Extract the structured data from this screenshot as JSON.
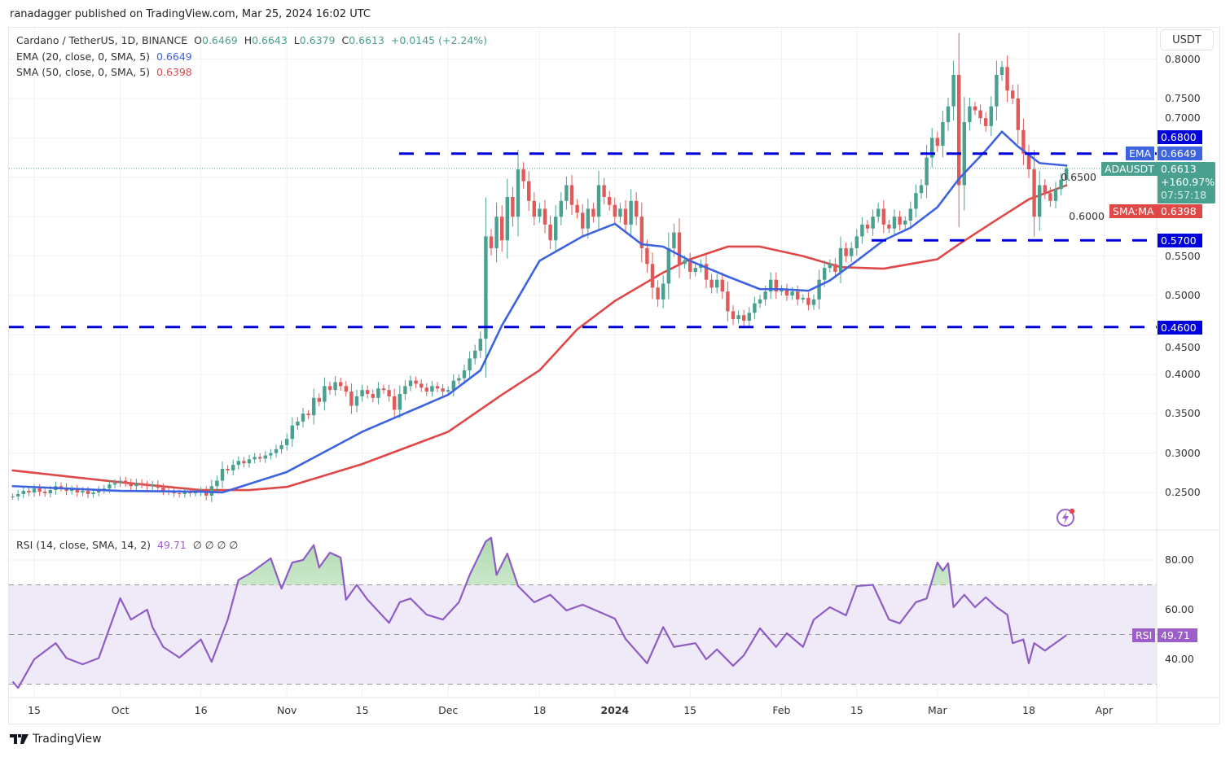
{
  "header": {
    "published": "ranadagger published on TradingView.com, Mar 25, 2024 16:02 UTC"
  },
  "legend": {
    "symbol": "Cardano / TetherUS, 1D, BINANCE",
    "o_label": "O",
    "o": "0.6469",
    "h_label": "H",
    "h": "0.6643",
    "l_label": "L",
    "l": "0.6379",
    "c_label": "C",
    "c": "0.6613",
    "change": "+0.0145 (+2.24%)",
    "ema_label": "EMA (20, close, 0, SMA, 5)",
    "ema_value": "0.6649",
    "sma_label": "SMA (50, close, 0, SMA, 5)",
    "sma_value": "0.6398",
    "rsi_label": "RSI (14, close, SMA, 14, 2)",
    "rsi_value": "49.71",
    "rsi_extra": "∅ ∅ ∅ ∅"
  },
  "axis": {
    "currency": "USDT",
    "price_ticks": [
      "0.2500",
      "0.3000",
      "0.3500",
      "0.4000",
      "0.4500",
      "0.5000",
      "0.5500",
      "0.6000",
      "0.6500",
      "0.7000",
      "0.7500",
      "0.8000"
    ],
    "rsi_ticks": [
      "40.00",
      "60.00",
      "80.00"
    ],
    "time_ticks": [
      {
        "label": "15",
        "date": "2023-09-15"
      },
      {
        "label": "Oct",
        "date": "2023-10-01"
      },
      {
        "label": "16",
        "date": "2023-10-16"
      },
      {
        "label": "Nov",
        "date": "2023-11-01"
      },
      {
        "label": "15",
        "date": "2023-11-15"
      },
      {
        "label": "Dec",
        "date": "2023-12-01"
      },
      {
        "label": "18",
        "date": "2023-12-18"
      },
      {
        "label": "2024",
        "date": "2024-01-01",
        "bold": true
      },
      {
        "label": "15",
        "date": "2024-01-15"
      },
      {
        "label": "Feb",
        "date": "2024-02-01"
      },
      {
        "label": "15",
        "date": "2024-02-15"
      },
      {
        "label": "Mar",
        "date": "2024-03-01"
      },
      {
        "label": "18",
        "date": "2024-03-18"
      },
      {
        "label": "Apr",
        "date": "2024-04-01"
      }
    ]
  },
  "price_labels": {
    "resistance": "0.6800",
    "ema_tag": "EMA",
    "ema": "0.6649",
    "symbol_tag": "ADAUSDT",
    "last": "0.6613",
    "last_change": "+160.97%",
    "countdown": "07:57:18",
    "sma_tag": "SMA:MA",
    "sma": "0.6398",
    "support1": "0.5700",
    "support2": "0.4600",
    "rsi_tag": "RSI",
    "rsi": "49.71"
  },
  "colors": {
    "up": "#4aa08f",
    "down": "#e05a5a",
    "ema": "#3d63e0",
    "sma": "#e04848",
    "level": "#0000dd",
    "rsi": "#8e5cc4",
    "rsi_band": "#efeaf7",
    "last": "#4aa08f"
  },
  "footer": {
    "brand": "TradingView"
  },
  "chart_data": {
    "type": "candlestick",
    "title": "Cardano / TetherUS, 1D, BINANCE",
    "ylim": [
      0.22,
      0.82
    ],
    "first_date": "2023-09-11",
    "closes": [
      0.245,
      0.248,
      0.252,
      0.25,
      0.255,
      0.251,
      0.249,
      0.253,
      0.258,
      0.256,
      0.252,
      0.254,
      0.25,
      0.252,
      0.248,
      0.25,
      0.253,
      0.255,
      0.26,
      0.262,
      0.265,
      0.262,
      0.258,
      0.262,
      0.26,
      0.258,
      0.26,
      0.256,
      0.252,
      0.251,
      0.249,
      0.248,
      0.25,
      0.249,
      0.25,
      0.252,
      0.246,
      0.258,
      0.265,
      0.28,
      0.278,
      0.285,
      0.29,
      0.287,
      0.292,
      0.295,
      0.293,
      0.297,
      0.3,
      0.305,
      0.31,
      0.318,
      0.335,
      0.34,
      0.35,
      0.348,
      0.37,
      0.365,
      0.385,
      0.38,
      0.39,
      0.385,
      0.378,
      0.36,
      0.372,
      0.38,
      0.375,
      0.37,
      0.382,
      0.38,
      0.372,
      0.355,
      0.375,
      0.385,
      0.392,
      0.388,
      0.383,
      0.378,
      0.385,
      0.382,
      0.378,
      0.38,
      0.392,
      0.395,
      0.405,
      0.42,
      0.43,
      0.445,
      0.575,
      0.56,
      0.6,
      0.57,
      0.625,
      0.6,
      0.66,
      0.645,
      0.62,
      0.6,
      0.61,
      0.59,
      0.57,
      0.6,
      0.62,
      0.64,
      0.615,
      0.605,
      0.585,
      0.61,
      0.6,
      0.64,
      0.625,
      0.615,
      0.6,
      0.61,
      0.59,
      0.62,
      0.6,
      0.56,
      0.54,
      0.51,
      0.495,
      0.515,
      0.56,
      0.58,
      0.54,
      0.545,
      0.53,
      0.535,
      0.54,
      0.52,
      0.51,
      0.52,
      0.505,
      0.48,
      0.47,
      0.475,
      0.468,
      0.478,
      0.49,
      0.495,
      0.505,
      0.52,
      0.505,
      0.508,
      0.5,
      0.505,
      0.495,
      0.497,
      0.488,
      0.495,
      0.52,
      0.535,
      0.54,
      0.53,
      0.56,
      0.55,
      0.56,
      0.575,
      0.59,
      0.585,
      0.6,
      0.61,
      0.59,
      0.585,
      0.6,
      0.59,
      0.595,
      0.61,
      0.63,
      0.64,
      0.675,
      0.7,
      0.69,
      0.72,
      0.74,
      0.78,
      0.64,
      0.72,
      0.74,
      0.735,
      0.725,
      0.715,
      0.74,
      0.78,
      0.79,
      0.76,
      0.75,
      0.71,
      0.68,
      0.66,
      0.6,
      0.64,
      0.63,
      0.62,
      0.635,
      0.6469,
      0.6613
    ],
    "last_candle": {
      "open": 0.6469,
      "high": 0.6643,
      "low": 0.6379,
      "close": 0.6613
    },
    "levels": [
      0.68,
      0.57,
      0.46
    ],
    "ema20": [
      [
        "2023-09-11",
        0.258
      ],
      [
        "2023-10-01",
        0.252
      ],
      [
        "2023-10-16",
        0.251
      ],
      [
        "2023-10-20",
        0.25
      ],
      [
        "2023-11-01",
        0.276
      ],
      [
        "2023-11-15",
        0.327
      ],
      [
        "2023-12-01",
        0.374
      ],
      [
        "2023-12-07",
        0.405
      ],
      [
        "2023-12-11",
        0.462
      ],
      [
        "2023-12-18",
        0.544
      ],
      [
        "2023-12-26",
        0.575
      ],
      [
        "2024-01-01",
        0.591
      ],
      [
        "2024-01-06",
        0.565
      ],
      [
        "2024-01-10",
        0.562
      ],
      [
        "2024-01-15",
        0.544
      ],
      [
        "2024-01-22",
        0.524
      ],
      [
        "2024-01-28",
        0.508
      ],
      [
        "2024-02-01",
        0.508
      ],
      [
        "2024-02-06",
        0.506
      ],
      [
        "2024-02-10",
        0.519
      ],
      [
        "2024-02-15",
        0.544
      ],
      [
        "2024-02-20",
        0.57
      ],
      [
        "2024-02-25",
        0.586
      ],
      [
        "2024-03-01",
        0.612
      ],
      [
        "2024-03-05",
        0.648
      ],
      [
        "2024-03-10",
        0.684
      ],
      [
        "2024-03-13",
        0.708
      ],
      [
        "2024-03-16",
        0.689
      ],
      [
        "2024-03-20",
        0.668
      ],
      [
        "2024-03-25",
        0.6649
      ]
    ],
    "sma50": [
      [
        "2023-09-11",
        0.278
      ],
      [
        "2023-10-01",
        0.263
      ],
      [
        "2023-10-16",
        0.253
      ],
      [
        "2023-10-25",
        0.253
      ],
      [
        "2023-11-01",
        0.257
      ],
      [
        "2023-11-15",
        0.286
      ],
      [
        "2023-12-01",
        0.327
      ],
      [
        "2023-12-11",
        0.374
      ],
      [
        "2023-12-18",
        0.405
      ],
      [
        "2023-12-25",
        0.457
      ],
      [
        "2024-01-01",
        0.493
      ],
      [
        "2024-01-10",
        0.529
      ],
      [
        "2024-01-15",
        0.546
      ],
      [
        "2024-01-22",
        0.562
      ],
      [
        "2024-01-28",
        0.562
      ],
      [
        "2024-02-05",
        0.55
      ],
      [
        "2024-02-12",
        0.536
      ],
      [
        "2024-02-20",
        0.534
      ],
      [
        "2024-03-01",
        0.546
      ],
      [
        "2024-03-05",
        0.565
      ],
      [
        "2024-03-12",
        0.596
      ],
      [
        "2024-03-18",
        0.622
      ],
      [
        "2024-03-25",
        0.6398
      ]
    ],
    "rsi": {
      "ylim": [
        25,
        92
      ],
      "bands": [
        30,
        50,
        70
      ],
      "points": [
        [
          "2023-09-11",
          31
        ],
        [
          "2023-09-12",
          28.5
        ],
        [
          "2023-09-15",
          40
        ],
        [
          "2023-09-19",
          46.5
        ],
        [
          "2023-09-21",
          40.5
        ],
        [
          "2023-09-24",
          38
        ],
        [
          "2023-09-27",
          40.5
        ],
        [
          "2023-09-28",
          46.5
        ],
        [
          "2023-10-01",
          64.6
        ],
        [
          "2023-10-03",
          56
        ],
        [
          "2023-10-06",
          60
        ],
        [
          "2023-10-07",
          53
        ],
        [
          "2023-10-09",
          45
        ],
        [
          "2023-10-12",
          40.7
        ],
        [
          "2023-10-16",
          48
        ],
        [
          "2023-10-18",
          39
        ],
        [
          "2023-10-21",
          56
        ],
        [
          "2023-10-23",
          72
        ],
        [
          "2023-10-25",
          74.4
        ],
        [
          "2023-10-29",
          80.7
        ],
        [
          "2023-10-31",
          68.5
        ],
        [
          "2023-11-02",
          79
        ],
        [
          "2023-11-04",
          80
        ],
        [
          "2023-11-06",
          86
        ],
        [
          "2023-11-07",
          77
        ],
        [
          "2023-11-09",
          83
        ],
        [
          "2023-11-11",
          81
        ],
        [
          "2023-11-12",
          64
        ],
        [
          "2023-11-14",
          70
        ],
        [
          "2023-11-16",
          64
        ],
        [
          "2023-11-20",
          54.7
        ],
        [
          "2023-11-22",
          63
        ],
        [
          "2023-11-24",
          64.5
        ],
        [
          "2023-11-27",
          58
        ],
        [
          "2023-11-30",
          56
        ],
        [
          "2023-12-03",
          63
        ],
        [
          "2023-12-05",
          74
        ],
        [
          "2023-12-08",
          87.5
        ],
        [
          "2023-12-09",
          89
        ],
        [
          "2023-12-10",
          74
        ],
        [
          "2023-12-12",
          82.6
        ],
        [
          "2023-12-14",
          69.5
        ],
        [
          "2023-12-17",
          63
        ],
        [
          "2023-12-20",
          66
        ],
        [
          "2023-12-23",
          59.7
        ],
        [
          "2023-12-26",
          62
        ],
        [
          "2024-01-01",
          56.4
        ],
        [
          "2024-01-03",
          48.2
        ],
        [
          "2024-01-07",
          38.4
        ],
        [
          "2024-01-10",
          53
        ],
        [
          "2024-01-12",
          45
        ],
        [
          "2024-01-16",
          46.5
        ],
        [
          "2024-01-18",
          40
        ],
        [
          "2024-01-20",
          44
        ],
        [
          "2024-01-23",
          37.4
        ],
        [
          "2024-01-25",
          41.6
        ],
        [
          "2024-01-28",
          52.5
        ],
        [
          "2024-01-31",
          45
        ],
        [
          "2024-02-02",
          50.5
        ],
        [
          "2024-02-05",
          45
        ],
        [
          "2024-02-07",
          56
        ],
        [
          "2024-02-10",
          61
        ],
        [
          "2024-02-13",
          57.7
        ],
        [
          "2024-02-15",
          69.5
        ],
        [
          "2024-02-18",
          70
        ],
        [
          "2024-02-21",
          56
        ],
        [
          "2024-02-23",
          54.5
        ],
        [
          "2024-02-26",
          63
        ],
        [
          "2024-02-28",
          64.5
        ],
        [
          "2024-03-01",
          79
        ],
        [
          "2024-03-02",
          75.7
        ],
        [
          "2024-03-03",
          78.7
        ],
        [
          "2024-03-04",
          61
        ],
        [
          "2024-03-06",
          66
        ],
        [
          "2024-03-08",
          61
        ],
        [
          "2024-03-10",
          65
        ],
        [
          "2024-03-12",
          61
        ],
        [
          "2024-03-14",
          58
        ],
        [
          "2024-03-15",
          46.5
        ],
        [
          "2024-03-17",
          48
        ],
        [
          "2024-03-18",
          38.4
        ],
        [
          "2024-03-19",
          46.5
        ],
        [
          "2024-03-21",
          43.5
        ],
        [
          "2024-03-25",
          49.71
        ]
      ]
    }
  }
}
